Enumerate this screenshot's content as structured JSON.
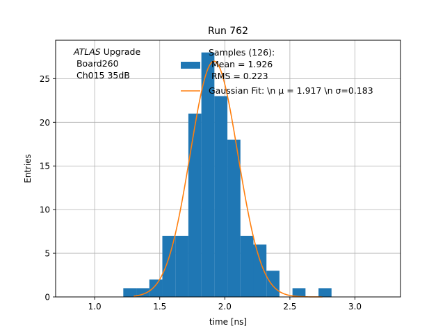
{
  "chart_data": {
    "type": "bar",
    "title": "Run 762",
    "xlabel": "time [ns]",
    "ylabel": "Entries",
    "xlim": [
      0.7,
      3.35
    ],
    "ylim": [
      0,
      29.4
    ],
    "grid": true,
    "xticks": [
      1.0,
      1.5,
      2.0,
      2.5,
      3.0
    ],
    "xtick_labels": [
      "1.0",
      "1.5",
      "2.0",
      "2.5",
      "3.0"
    ],
    "yticks": [
      0,
      5,
      10,
      15,
      20,
      25
    ],
    "ytick_labels": [
      "0",
      "5",
      "10",
      "15",
      "20",
      "25"
    ],
    "histogram": {
      "bin_edges": [
        1.22,
        1.32,
        1.42,
        1.52,
        1.62,
        1.72,
        1.82,
        1.92,
        2.02,
        2.12,
        2.22,
        2.32,
        2.42,
        2.52,
        2.62,
        2.72,
        2.82
      ],
      "counts": [
        1,
        1,
        2,
        7,
        7,
        21,
        28,
        23,
        18,
        7,
        6,
        3,
        0,
        1,
        0,
        1
      ],
      "color": "#1f77b4"
    },
    "fit": {
      "mu": 1.917,
      "sigma": 0.183,
      "peak": 27,
      "x_range": [
        1.3,
        2.75
      ],
      "color": "#ff7f0e"
    },
    "legend": {
      "placement": "upper right",
      "entries": [
        {
          "symbol": "patch",
          "lines": [
            "Samples (126):",
            " Mean = 1.926",
            " RMS = 0.223"
          ]
        },
        {
          "symbol": "line",
          "lines": [
            "Gaussian Fit: \\n μ = 1.917 \\n σ=0.183"
          ]
        }
      ]
    },
    "annotation": {
      "italic": "ATLAS",
      "rest": " Upgrade",
      "line2": " Board260",
      "line3": " Ch015 35dB"
    }
  }
}
